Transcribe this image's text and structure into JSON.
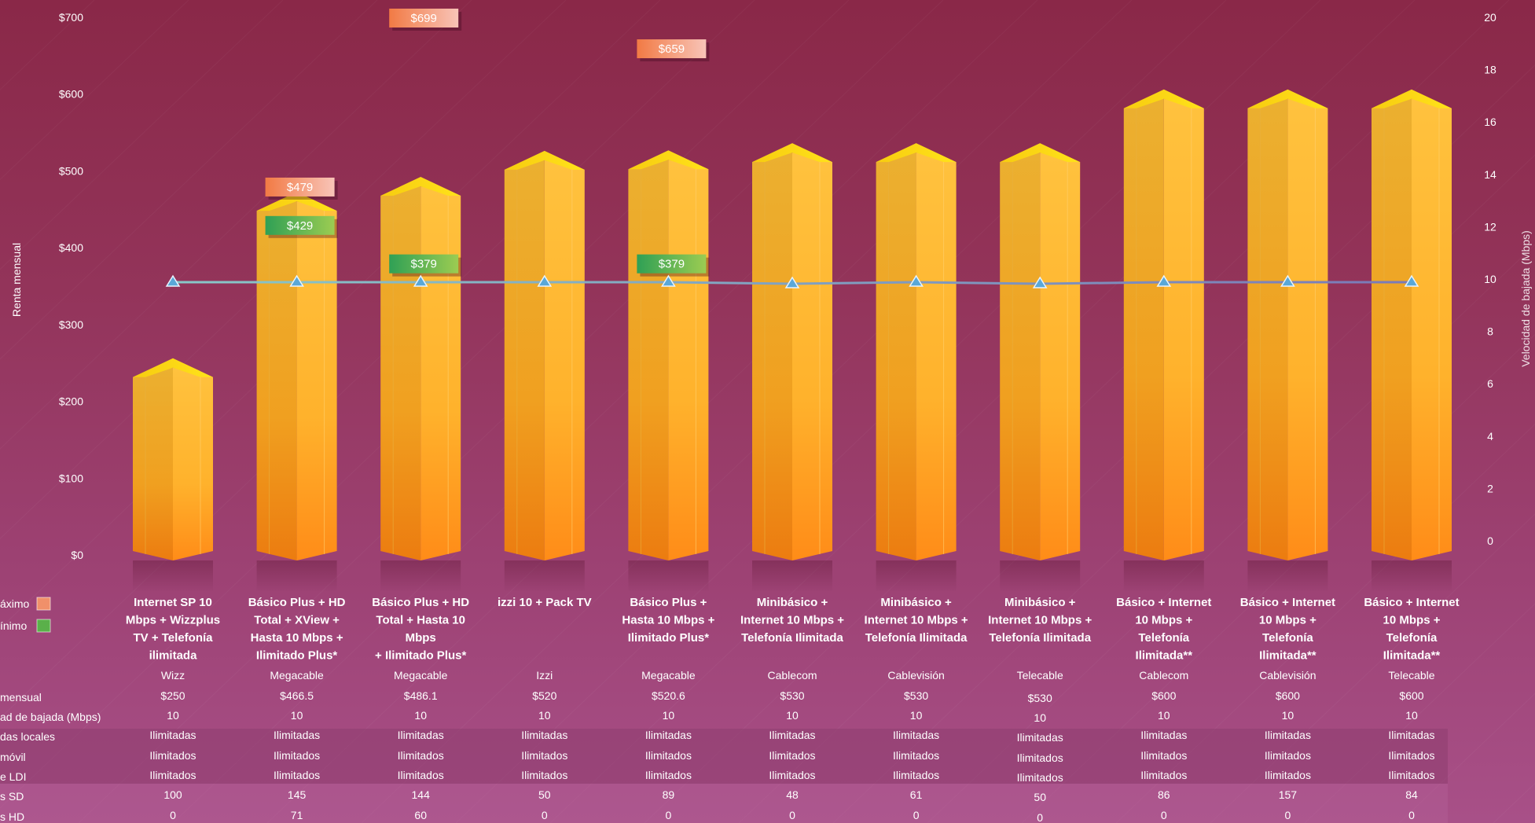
{
  "chart_data": {
    "type": "bar",
    "y_left": {
      "label": "Renta mensual",
      "ticks": [
        "$0",
        "$100",
        "$200",
        "$300",
        "$400",
        "$500",
        "$600",
        "$700"
      ],
      "range": [
        0,
        700
      ]
    },
    "y_right": {
      "label": "Velocidad de bajada (Mbps)",
      "ticks": [
        "0",
        "2",
        "4",
        "6",
        "8",
        "10",
        "12",
        "14",
        "16",
        "18",
        "20"
      ],
      "range": [
        0,
        20
      ]
    },
    "categories": [
      "Internet SP 10 Mbps + Wizzplus TV +  Telefonía ilimitada",
      "Básico Plus + HD Total + XView + Hasta 10 Mbps + Ilimitado Plus*",
      "Básico Plus + HD Total + Hasta 10 Mbps + Ilimitado Plus*",
      "izzi 10 + Pack TV",
      "Básico Plus + Hasta 10 Mbps + Ilimitado Plus*",
      "Minibásico + Internet 10 Mbps + Telefonía Ilimitada",
      "Minibásico + Internet 10 Mbps + Telefonía Ilimitada",
      "Minibásico + Internet 10 Mbps + Telefonía Ilimitada",
      "Básico + Internet 10 Mbps + Telefonía Ilimitada**",
      "Básico + Internet 10 Mbps + Telefonía Ilimitada**",
      "Básico + Internet 10 Mbps + Telefonía Ilimitada**"
    ],
    "category_lines": [
      [
        "Internet SP 10",
        "Mbps + Wizzplus",
        "TV +  Telefonía",
        "ilimitada"
      ],
      [
        "Básico Plus + HD",
        "Total + XView +",
        "Hasta 10 Mbps +",
        "Ilimitado Plus*"
      ],
      [
        "Básico Plus + HD",
        "Total + Hasta 10",
        "Mbps",
        "+ Ilimitado Plus*"
      ],
      [
        "izzi 10 + Pack TV"
      ],
      [
        "Básico Plus +",
        "Hasta 10 Mbps +",
        "Ilimitado Plus*"
      ],
      [
        "Minibásico +",
        "Internet 10 Mbps +",
        "Telefonía Ilimitada"
      ],
      [
        "Minibásico +",
        "Internet 10 Mbps +",
        "Telefonía Ilimitada"
      ],
      [
        "Minibásico +",
        "Internet 10 Mbps +",
        "Telefonía Ilimitada"
      ],
      [
        "Básico + Internet",
        "10 Mbps +",
        "Telefonía",
        "Ilimitada**"
      ],
      [
        "Básico + Internet",
        "10 Mbps +",
        "Telefonía",
        "Ilimitada**"
      ],
      [
        "Básico + Internet",
        "10 Mbps +",
        "Telefonía",
        "Ilimitada**"
      ]
    ],
    "series": [
      {
        "name": "Renta mensual",
        "axis": "left",
        "values": [
          250,
          466.5,
          486.1,
          520,
          520.6,
          530,
          530,
          530,
          600,
          600,
          600
        ]
      },
      {
        "name": "Velocidad de bajada (Mbps)",
        "axis": "right",
        "values": [
          10,
          10,
          10,
          10,
          10,
          10,
          10,
          10,
          10,
          10,
          10
        ]
      }
    ],
    "max_labels": [
      null,
      "$479",
      "$699",
      null,
      "$659",
      null,
      null,
      null,
      null,
      null,
      null
    ],
    "max_values": [
      null,
      479,
      699,
      null,
      659,
      null,
      null,
      null,
      null,
      null,
      null
    ],
    "min_labels": [
      null,
      "$429",
      "$379",
      null,
      "$379",
      null,
      null,
      null,
      null,
      null,
      null
    ],
    "min_values": [
      null,
      429,
      379,
      null,
      379,
      null,
      null,
      null,
      null,
      null,
      null
    ],
    "legend": [
      {
        "label": "áximo",
        "color": "#f0906a"
      },
      {
        "label": "ínimo",
        "color": "#5ab04a"
      }
    ],
    "colors": {
      "bar_light": "#ffc03a",
      "bar_dark": "#e89a1a",
      "bar_top": "#ffd91a",
      "line": "#7fb4c8",
      "marker": "#5aa8d8"
    }
  },
  "table": {
    "row_labels": [
      "",
      "mensual",
      "ad de bajada (Mbps)",
      "das locales",
      "móvil",
      "e LDI",
      "s SD",
      "s HD"
    ],
    "rows": [
      [
        "Wizz",
        "Megacable",
        "Megacable",
        "Izzi",
        "Megacable",
        "Cablecom",
        "Cablevisión",
        "Telecable",
        "Cablecom",
        "Cablevisión",
        "Telecable"
      ],
      [
        "$250",
        "$466.5",
        "$486.1",
        "$520",
        "$520.6",
        "$530",
        "$530",
        "$530",
        "$600",
        "$600",
        "$600"
      ],
      [
        "10",
        "10",
        "10",
        "10",
        "10",
        "10",
        "10",
        "10",
        "10",
        "10",
        "10"
      ],
      [
        "Ilimitadas",
        "Ilimitadas",
        "Ilimitadas",
        "Ilimitadas",
        "Ilimitadas",
        "Ilimitadas",
        "Ilimitadas",
        "Ilimitadas",
        "Ilimitadas",
        "Ilimitadas",
        "Ilimitadas"
      ],
      [
        "Ilimitados",
        "Ilimitados",
        "Ilimitados",
        "Ilimitados",
        "Ilimitados",
        "Ilimitados",
        "Ilimitados",
        "Ilimitados",
        "Ilimitados",
        "Ilimitados",
        "Ilimitados"
      ],
      [
        "Ilimitados",
        "Ilimitados",
        "Ilimitados",
        "Ilimitados",
        "Ilimitados",
        "Ilimitados",
        "Ilimitados",
        "Ilimitados",
        "Ilimitados",
        "Ilimitados",
        "Ilimitados"
      ],
      [
        "100",
        "145",
        "144",
        "50",
        "89",
        "48",
        "61",
        "50",
        "86",
        "157",
        "84"
      ],
      [
        "0",
        "71",
        "60",
        "0",
        "0",
        "0",
        "0",
        "0",
        "0",
        "0",
        "0"
      ]
    ]
  }
}
